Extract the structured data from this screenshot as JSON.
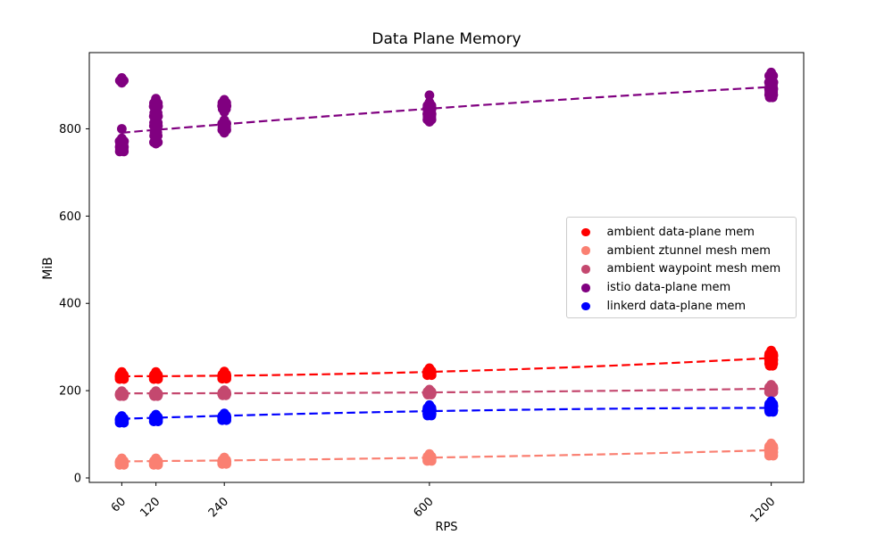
{
  "chart_data": {
    "type": "scatter",
    "title": "Data Plane Memory",
    "xlabel": "RPS",
    "ylabel": "MiB",
    "x_ticks": [
      60,
      120,
      240,
      600,
      1200
    ],
    "y_ticks": [
      0,
      200,
      400,
      600,
      800
    ],
    "xlim": [
      3,
      1257
    ],
    "ylim": [
      -10.2,
      974.6
    ],
    "grid": false,
    "legend_position": "center right",
    "series": [
      {
        "name": "ambient data-plane mem",
        "color": "#ff0000",
        "points": [
          [
            243,
            236,
            236,
            232.5,
            232.5,
            229.5,
            229.5,
            226.5,
            226.5
          ],
          [
            243,
            236,
            236,
            232.5,
            232.5,
            229.5,
            229.5,
            226.5,
            226.5
          ],
          [
            244,
            237,
            237,
            233.5,
            233.5,
            230.5,
            230.5,
            227.5,
            227.5
          ],
          [
            251.5,
            245.5,
            245.5,
            242,
            242,
            238.5,
            238.5,
            235.5,
            235.5
          ],
          [
            292,
            284.5,
            284.5,
            280,
            280,
            275.5,
            275.5,
            271,
            271,
            266.5,
            266.5,
            262,
            262,
            257,
            257
          ]
        ],
        "trend": [
          233,
          243,
          275
        ]
      },
      {
        "name": "ambient ztunnel mesh mem",
        "color": "#fa8072",
        "points": [
          [
            45,
            39,
            39,
            35.5,
            35.5,
            32.5,
            32.5,
            30,
            30
          ],
          [
            45,
            39,
            39,
            35.5,
            35.5,
            32.5,
            32.5,
            30,
            30
          ],
          [
            47,
            41,
            41,
            37.5,
            37.5,
            34.5,
            34.5,
            32,
            32
          ],
          [
            55,
            49,
            49,
            45.5,
            45.5,
            42,
            42,
            39,
            39
          ],
          [
            79,
            72.5,
            72.5,
            68,
            68,
            63.5,
            63.5,
            59,
            59,
            54.5,
            54.5,
            51,
            51
          ]
        ],
        "trend": [
          38,
          46.5,
          63.5
        ]
      },
      {
        "name": "ambient waypoint mesh mem",
        "color": "#c4486f",
        "points": [
          [
            199,
            194,
            194,
            190.5,
            190.5,
            187.5,
            187.5
          ],
          [
            199,
            194,
            194,
            190.5,
            190.5,
            187.5,
            187.5
          ],
          [
            201,
            196,
            196,
            192.5,
            192.5,
            189.5,
            189.5
          ],
          [
            202.5,
            197.5,
            197.5,
            194,
            194,
            191,
            191
          ],
          [
            213.5,
            208,
            208,
            204,
            204,
            200,
            200,
            196.5,
            196.5
          ]
        ],
        "trend": [
          194,
          196,
          204.5
        ]
      },
      {
        "name": "istio data-plane mem",
        "color": "#800080",
        "points": [
          [
            916.5,
            910.5,
            910.5,
            905.5,
            800,
            778,
            771.5,
            771.5,
            765,
            765,
            758.5,
            758.5,
            752.5,
            752.5,
            748,
            748
          ],
          [
            869,
            859,
            859,
            851.5,
            851.5,
            844,
            836.5,
            836.5,
            829,
            829,
            821.5,
            814,
            814,
            806.5,
            806.5,
            799,
            791.5,
            791.5,
            784,
            784,
            776.5,
            769,
            769,
            766
          ],
          [
            866.5,
            859.5,
            859.5,
            852.5,
            852.5,
            845.5,
            845.5,
            838.5,
            820,
            812,
            812,
            804.5,
            804.5,
            797.5,
            797.5,
            791
          ],
          [
            877,
            860.5,
            853.5,
            853.5,
            847,
            847,
            840.5,
            840.5,
            834,
            834,
            827.5,
            827.5,
            821,
            821,
            816
          ],
          [
            929,
            921.5,
            921.5,
            914,
            906.5,
            906.5,
            899,
            899,
            891.5,
            891.5,
            884.5,
            884.5,
            878,
            878,
            872,
            872
          ]
        ],
        "trend": [
          791,
          846,
          896
        ]
      },
      {
        "name": "linkerd data-plane mem",
        "color": "#0000ff",
        "points": [
          [
            142,
            136.5,
            136.5,
            133,
            133,
            129.5,
            129.5,
            126.5,
            126.5
          ],
          [
            145,
            139.5,
            139.5,
            136,
            136,
            132.5,
            132.5,
            129.5,
            129.5
          ],
          [
            148,
            142.5,
            142.5,
            139,
            139,
            135.5,
            135.5,
            132.5,
            132.5
          ],
          [
            167,
            160.5,
            160.5,
            156,
            156,
            151.5,
            151.5,
            147,
            147,
            143,
            143
          ],
          [
            176,
            169.5,
            169.5,
            164.5,
            164.5,
            159.5,
            159.5,
            155,
            155,
            151.5,
            151.5
          ]
        ],
        "trend": [
          135.5,
          153,
          160.5
        ]
      }
    ]
  }
}
